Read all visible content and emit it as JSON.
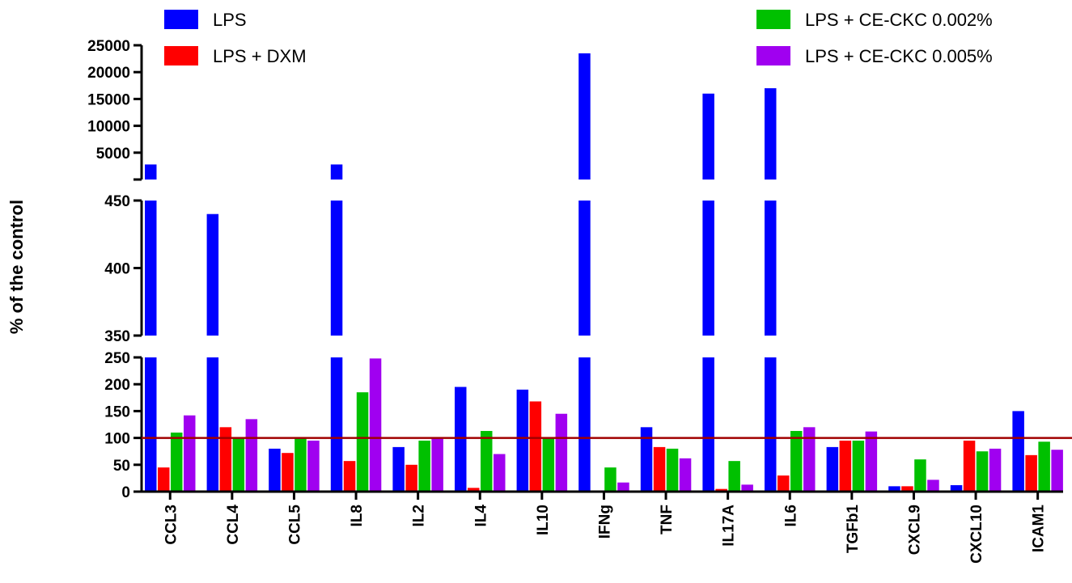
{
  "chart_data": {
    "type": "bar",
    "title": "",
    "xlabel": "",
    "ylabel": "% of the control",
    "categories": [
      "CCL3",
      "CCL4",
      "CCL5",
      "IL8",
      "IL2",
      "IL4",
      "IL10",
      "IFNg",
      "TNF",
      "IL17A",
      "IL6",
      "TGFb1",
      "CXCL9",
      "CXCL10",
      "ICAM1"
    ],
    "series": [
      {
        "name": "LPS",
        "color": "#0000ff",
        "values": [
          2800,
          440,
          80,
          2800,
          83,
          195,
          190,
          23500,
          120,
          16000,
          17000,
          83,
          10,
          12,
          150
        ]
      },
      {
        "name": "LPS + DXM",
        "color": "#ff0000",
        "values": [
          45,
          120,
          72,
          57,
          50,
          7,
          168,
          0,
          83,
          5,
          30,
          95,
          10,
          95,
          68
        ]
      },
      {
        "name": "LPS + CE-CKC 0.002%",
        "color": "#00c000",
        "values": [
          110,
          100,
          100,
          185,
          95,
          113,
          100,
          45,
          80,
          57,
          113,
          95,
          60,
          75,
          93
        ]
      },
      {
        "name": "LPS + CE-CKC 0.005%",
        "color": "#a000f0",
        "values": [
          142,
          135,
          95,
          248,
          100,
          70,
          145,
          17,
          62,
          13,
          120,
          112,
          22,
          80,
          78
        ]
      }
    ],
    "reference_line": {
      "value": 100,
      "color": "#a00000"
    },
    "y_axis_segments": [
      {
        "range": [
          0,
          250
        ],
        "ticks": [
          "0",
          "50",
          "100",
          "150",
          "200",
          "250"
        ]
      },
      {
        "range": [
          350,
          450
        ],
        "ticks": [
          "350",
          "400",
          "450"
        ]
      },
      {
        "range": [
          2700,
          25000
        ],
        "ticks": [
          "5000",
          "10000",
          "15000",
          "20000",
          "25000"
        ]
      }
    ],
    "legend": {
      "placement": "top",
      "grid": false
    }
  }
}
